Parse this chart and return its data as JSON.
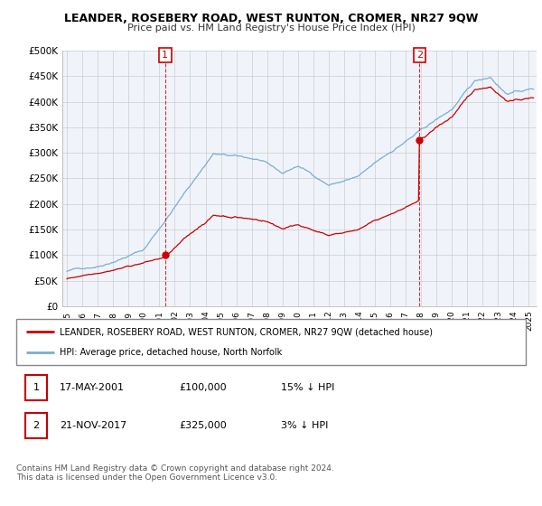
{
  "title": "LEANDER, ROSEBERY ROAD, WEST RUNTON, CROMER, NR27 9QW",
  "subtitle": "Price paid vs. HM Land Registry's House Price Index (HPI)",
  "ylim": [
    0,
    500000
  ],
  "yticks": [
    0,
    50000,
    100000,
    150000,
    200000,
    250000,
    300000,
    350000,
    400000,
    450000,
    500000
  ],
  "ytick_labels": [
    "£0",
    "£50K",
    "£100K",
    "£150K",
    "£200K",
    "£250K",
    "£300K",
    "£350K",
    "£400K",
    "£450K",
    "£500K"
  ],
  "xlim_start": 1994.7,
  "xlim_end": 2025.5,
  "sale1_x": 2001.37,
  "sale1_y": 100000,
  "sale1_label": "1",
  "sale2_x": 2017.9,
  "sale2_y": 325000,
  "sale2_label": "2",
  "hpi_color": "#7aadd4",
  "price_color": "#cc0000",
  "legend_label1": "LEANDER, ROSEBERY ROAD, WEST RUNTON, CROMER, NR27 9QW (detached house)",
  "legend_label2": "HPI: Average price, detached house, North Norfolk",
  "table_row1": [
    "1",
    "17-MAY-2001",
    "£100,000",
    "15% ↓ HPI"
  ],
  "table_row2": [
    "2",
    "21-NOV-2017",
    "£325,000",
    "3% ↓ HPI"
  ],
  "footer": "Contains HM Land Registry data © Crown copyright and database right 2024.\nThis data is licensed under the Open Government Licence v3.0.",
  "background_color": "#ffffff",
  "grid_color": "#cccccc",
  "chart_bg": "#f0f4fa"
}
